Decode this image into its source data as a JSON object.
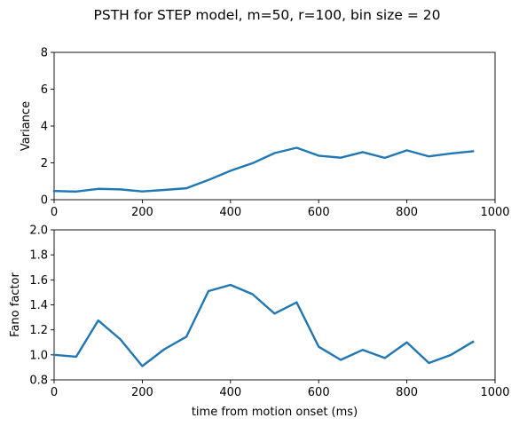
{
  "figure": {
    "title": "PSTH for STEP model, m=50, r=100, bin size = 20",
    "line_color": "#1f77b4"
  },
  "chart_data": [
    {
      "type": "line",
      "title": "",
      "xlabel": "",
      "ylabel": "Variance",
      "xlim": [
        0,
        1000
      ],
      "ylim": [
        0,
        8
      ],
      "xticks": [
        0,
        200,
        400,
        600,
        800,
        1000
      ],
      "yticks": [
        0,
        2,
        4,
        6,
        8
      ],
      "ytick_labels": [
        "0",
        "2",
        "4",
        "6",
        "8"
      ],
      "grid": false,
      "series": [
        {
          "name": "variance",
          "x": [
            0,
            50,
            100,
            150,
            200,
            250,
            300,
            350,
            400,
            450,
            500,
            550,
            600,
            650,
            700,
            750,
            800,
            850,
            900,
            950
          ],
          "values": [
            0.47,
            0.44,
            0.59,
            0.56,
            0.45,
            0.53,
            0.62,
            1.07,
            1.57,
            1.98,
            2.53,
            2.82,
            2.39,
            2.28,
            2.58,
            2.27,
            2.68,
            2.35,
            2.51,
            2.63
          ]
        }
      ]
    },
    {
      "type": "line",
      "title": "",
      "xlabel": "time from motion onset (ms)",
      "ylabel": "Fano factor",
      "xlim": [
        0,
        1000
      ],
      "ylim": [
        0.8,
        2.0
      ],
      "xticks": [
        0,
        200,
        400,
        600,
        800,
        1000
      ],
      "yticks": [
        0.8,
        1.0,
        1.2,
        1.4,
        1.6,
        1.8,
        2.0
      ],
      "ytick_labels": [
        "0.8",
        "1.0",
        "1.2",
        "1.4",
        "1.6",
        "1.8",
        "2.0"
      ],
      "grid": false,
      "series": [
        {
          "name": "fano factor",
          "x": [
            0,
            50,
            100,
            150,
            200,
            250,
            300,
            350,
            400,
            450,
            500,
            550,
            600,
            650,
            700,
            750,
            800,
            850,
            900,
            950
          ],
          "values": [
            1.0,
            0.985,
            1.275,
            1.125,
            0.91,
            1.045,
            1.145,
            1.51,
            1.56,
            1.485,
            1.33,
            1.42,
            1.065,
            0.96,
            1.04,
            0.975,
            1.1,
            0.935,
            1.0,
            1.105
          ]
        }
      ]
    }
  ]
}
